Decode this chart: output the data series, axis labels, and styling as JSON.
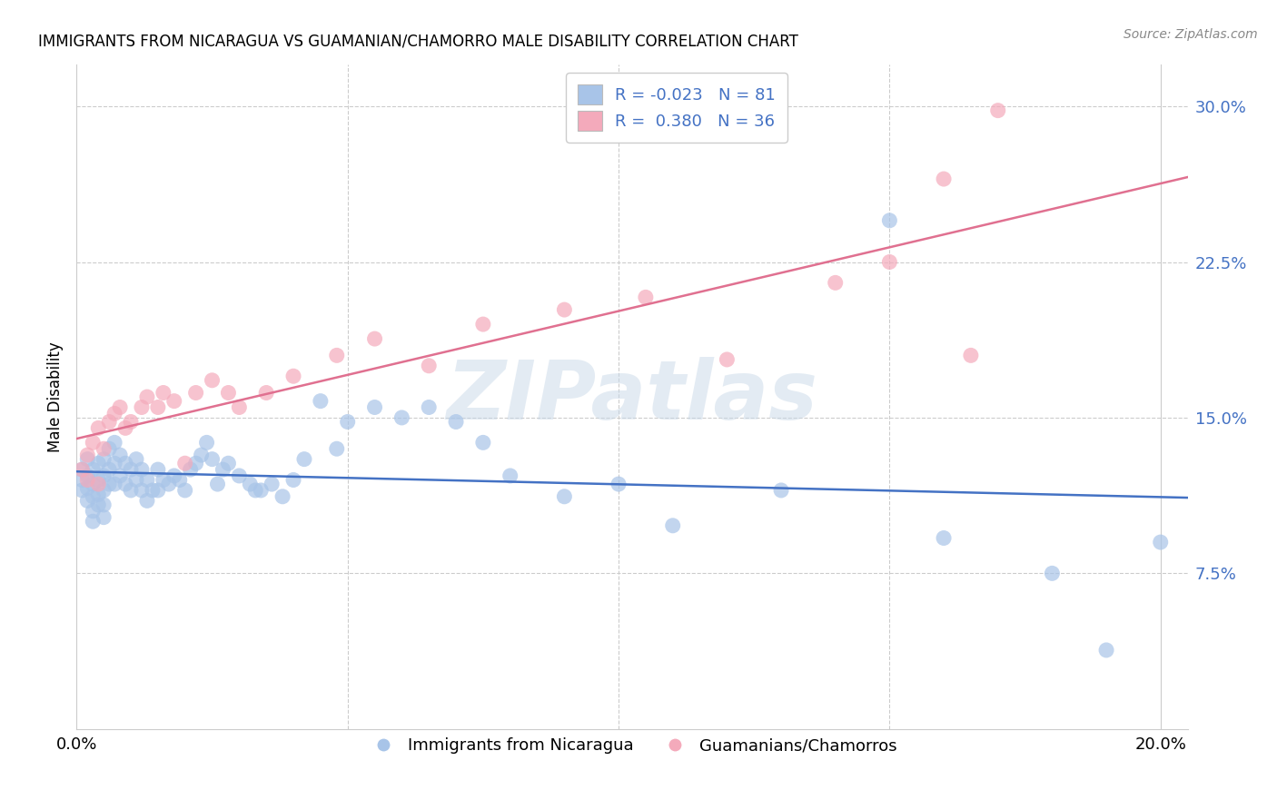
{
  "title": "IMMIGRANTS FROM NICARAGUA VS GUAMANIAN/CHAMORRO MALE DISABILITY CORRELATION CHART",
  "source": "Source: ZipAtlas.com",
  "ylabel": "Male Disability",
  "xlim": [
    0.0,
    0.205
  ],
  "ylim": [
    0.0,
    0.32
  ],
  "yticks": [
    0.075,
    0.15,
    0.225,
    0.3
  ],
  "ytick_labels": [
    "7.5%",
    "15.0%",
    "22.5%",
    "30.0%"
  ],
  "xticks": [
    0.0,
    0.05,
    0.1,
    0.15,
    0.2
  ],
  "xtick_labels": [
    "0.0%",
    "",
    "",
    "",
    "20.0%"
  ],
  "blue_R": -0.023,
  "blue_N": 81,
  "pink_R": 0.38,
  "pink_N": 36,
  "blue_color": "#a8c4e8",
  "pink_color": "#f4aabb",
  "blue_line_color": "#4472c4",
  "pink_line_color": "#e07090",
  "background_color": "#ffffff",
  "grid_color": "#cccccc",
  "watermark": "ZIPatlas",
  "blue_scatter_x": [
    0.001,
    0.001,
    0.001,
    0.002,
    0.002,
    0.002,
    0.002,
    0.003,
    0.003,
    0.003,
    0.003,
    0.003,
    0.004,
    0.004,
    0.004,
    0.004,
    0.005,
    0.005,
    0.005,
    0.005,
    0.005,
    0.006,
    0.006,
    0.006,
    0.007,
    0.007,
    0.007,
    0.008,
    0.008,
    0.009,
    0.009,
    0.01,
    0.01,
    0.011,
    0.011,
    0.012,
    0.012,
    0.013,
    0.013,
    0.014,
    0.015,
    0.015,
    0.016,
    0.017,
    0.018,
    0.019,
    0.02,
    0.021,
    0.022,
    0.023,
    0.024,
    0.025,
    0.026,
    0.027,
    0.028,
    0.03,
    0.032,
    0.033,
    0.034,
    0.036,
    0.038,
    0.04,
    0.042,
    0.045,
    0.048,
    0.05,
    0.055,
    0.06,
    0.065,
    0.07,
    0.075,
    0.08,
    0.09,
    0.1,
    0.11,
    0.13,
    0.15,
    0.16,
    0.18,
    0.19,
    0.2
  ],
  "blue_scatter_y": [
    0.125,
    0.12,
    0.115,
    0.13,
    0.122,
    0.116,
    0.11,
    0.125,
    0.118,
    0.112,
    0.105,
    0.1,
    0.128,
    0.12,
    0.113,
    0.108,
    0.13,
    0.122,
    0.115,
    0.108,
    0.102,
    0.135,
    0.125,
    0.118,
    0.138,
    0.128,
    0.118,
    0.132,
    0.122,
    0.128,
    0.118,
    0.125,
    0.115,
    0.13,
    0.12,
    0.125,
    0.115,
    0.12,
    0.11,
    0.115,
    0.125,
    0.115,
    0.12,
    0.118,
    0.122,
    0.12,
    0.115,
    0.125,
    0.128,
    0.132,
    0.138,
    0.13,
    0.118,
    0.125,
    0.128,
    0.122,
    0.118,
    0.115,
    0.115,
    0.118,
    0.112,
    0.12,
    0.13,
    0.158,
    0.135,
    0.148,
    0.155,
    0.15,
    0.155,
    0.148,
    0.138,
    0.122,
    0.112,
    0.118,
    0.098,
    0.115,
    0.245,
    0.092,
    0.075,
    0.038,
    0.09
  ],
  "pink_scatter_x": [
    0.001,
    0.002,
    0.002,
    0.003,
    0.004,
    0.004,
    0.005,
    0.006,
    0.007,
    0.008,
    0.009,
    0.01,
    0.012,
    0.013,
    0.015,
    0.016,
    0.018,
    0.02,
    0.022,
    0.025,
    0.028,
    0.03,
    0.035,
    0.04,
    0.048,
    0.055,
    0.065,
    0.075,
    0.09,
    0.105,
    0.12,
    0.14,
    0.15,
    0.16,
    0.165,
    0.17
  ],
  "pink_scatter_y": [
    0.125,
    0.132,
    0.12,
    0.138,
    0.145,
    0.118,
    0.135,
    0.148,
    0.152,
    0.155,
    0.145,
    0.148,
    0.155,
    0.16,
    0.155,
    0.162,
    0.158,
    0.128,
    0.162,
    0.168,
    0.162,
    0.155,
    0.162,
    0.17,
    0.18,
    0.188,
    0.175,
    0.195,
    0.202,
    0.208,
    0.178,
    0.215,
    0.225,
    0.265,
    0.18,
    0.298
  ]
}
